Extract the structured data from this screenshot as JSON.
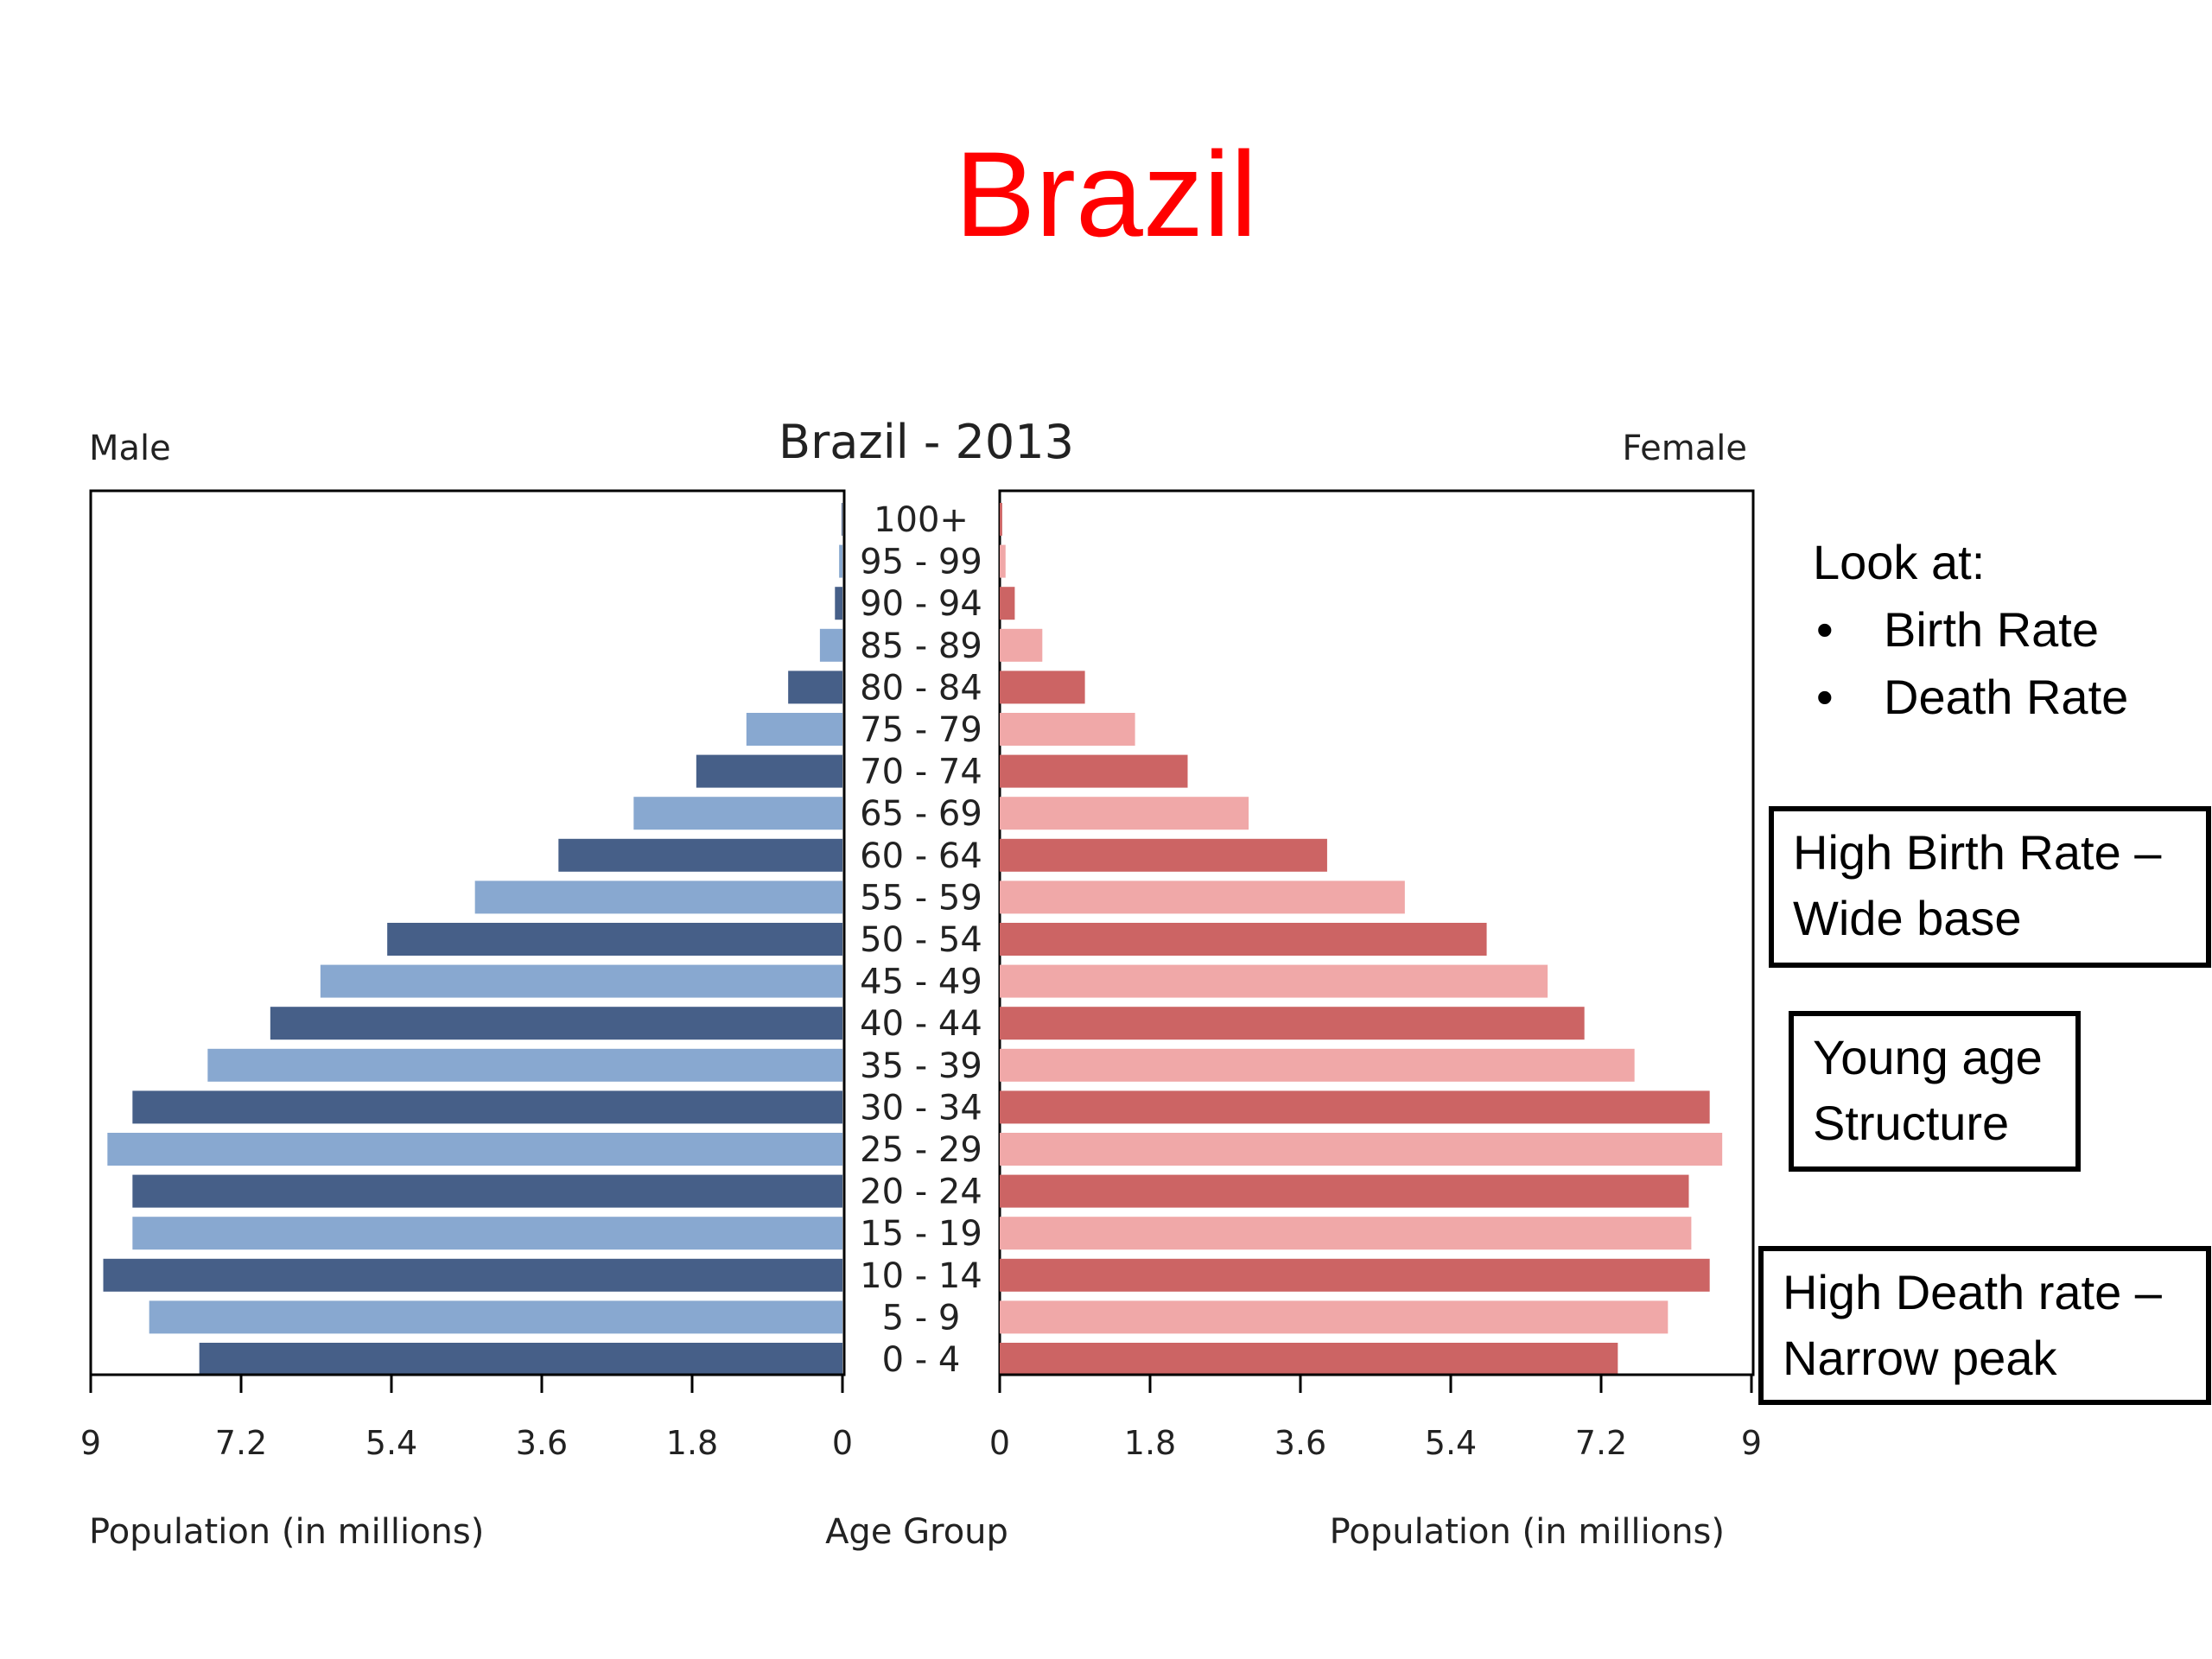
{
  "slide": {
    "title": "Brazil"
  },
  "chart_data": {
    "type": "bar",
    "title": "Brazil - 2013",
    "left_label": "Male",
    "right_label": "Female",
    "xlabel_left": "Population (in millions)",
    "xlabel_center": "Age Group",
    "xlabel_right": "Population (in millions)",
    "xlim": [
      0,
      9
    ],
    "ticks": [
      "9",
      "7.2",
      "5.4",
      "3.6",
      "1.8",
      "0"
    ],
    "ticks_right": [
      "0",
      "1.8",
      "3.6",
      "5.4",
      "7.2",
      "9"
    ],
    "categories": [
      "100+",
      "95 - 99",
      "90 - 94",
      "85 - 89",
      "80 - 84",
      "75 - 79",
      "70 - 74",
      "65 - 69",
      "60 - 64",
      "55 - 59",
      "50 - 54",
      "45 - 49",
      "40 - 44",
      "35 - 39",
      "30 - 34",
      "25 - 29",
      "20 - 24",
      "15 - 19",
      "10 - 14",
      "5 - 9",
      "0 - 4"
    ],
    "series": [
      {
        "name": "Male",
        "values": [
          0.01,
          0.04,
          0.09,
          0.27,
          0.65,
          1.15,
          1.75,
          2.5,
          3.4,
          4.4,
          5.45,
          6.25,
          6.85,
          7.6,
          8.5,
          8.8,
          8.5,
          8.5,
          8.85,
          8.3,
          7.7
        ]
      },
      {
        "name": "Female",
        "values": [
          0.03,
          0.07,
          0.18,
          0.51,
          1.02,
          1.62,
          2.25,
          2.98,
          3.92,
          4.85,
          5.83,
          6.56,
          7.0,
          7.6,
          8.5,
          8.65,
          8.25,
          8.28,
          8.5,
          8.0,
          7.4
        ]
      }
    ],
    "colors": {
      "male_dark": "#465f88",
      "male_light": "#88a8d0",
      "female_dark": "#cc6464",
      "female_light": "#f0a8a8"
    }
  },
  "annotations": {
    "look_at_heading": "Look at:",
    "look_at_items": [
      "Birth Rate",
      "Death Rate"
    ],
    "box1": [
      "High Birth Rate –",
      "Wide base"
    ],
    "box2": [
      "Young age",
      "Structure"
    ],
    "box3": [
      "High Death rate –",
      "Narrow peak"
    ]
  }
}
